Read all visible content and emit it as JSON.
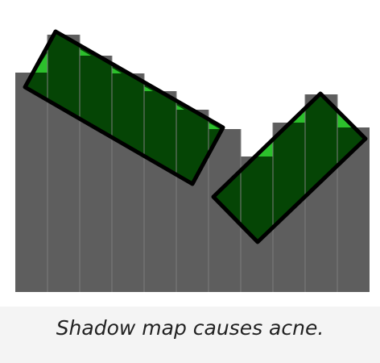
{
  "caption": "Shadow map causes acne.",
  "colors": {
    "depth_bar": "#5e5e5e",
    "column_separator": "#7c7c7c",
    "surface_fill": "#054505",
    "surface_outline": "#000000",
    "acne_highlight": "#2cc02c",
    "figure_background": "#ffffff",
    "page_background": "#f4f4f4"
  },
  "shadow_map": {
    "texel_count": 11,
    "depth_samples": [
      0.82,
      0.95,
      0.86,
      0.8,
      0.74,
      0.69,
      0.63,
      0.53,
      0.66,
      0.73,
      0.64
    ],
    "surfaces": [
      "tilted-surface-left",
      "tilted-surface-right"
    ]
  }
}
